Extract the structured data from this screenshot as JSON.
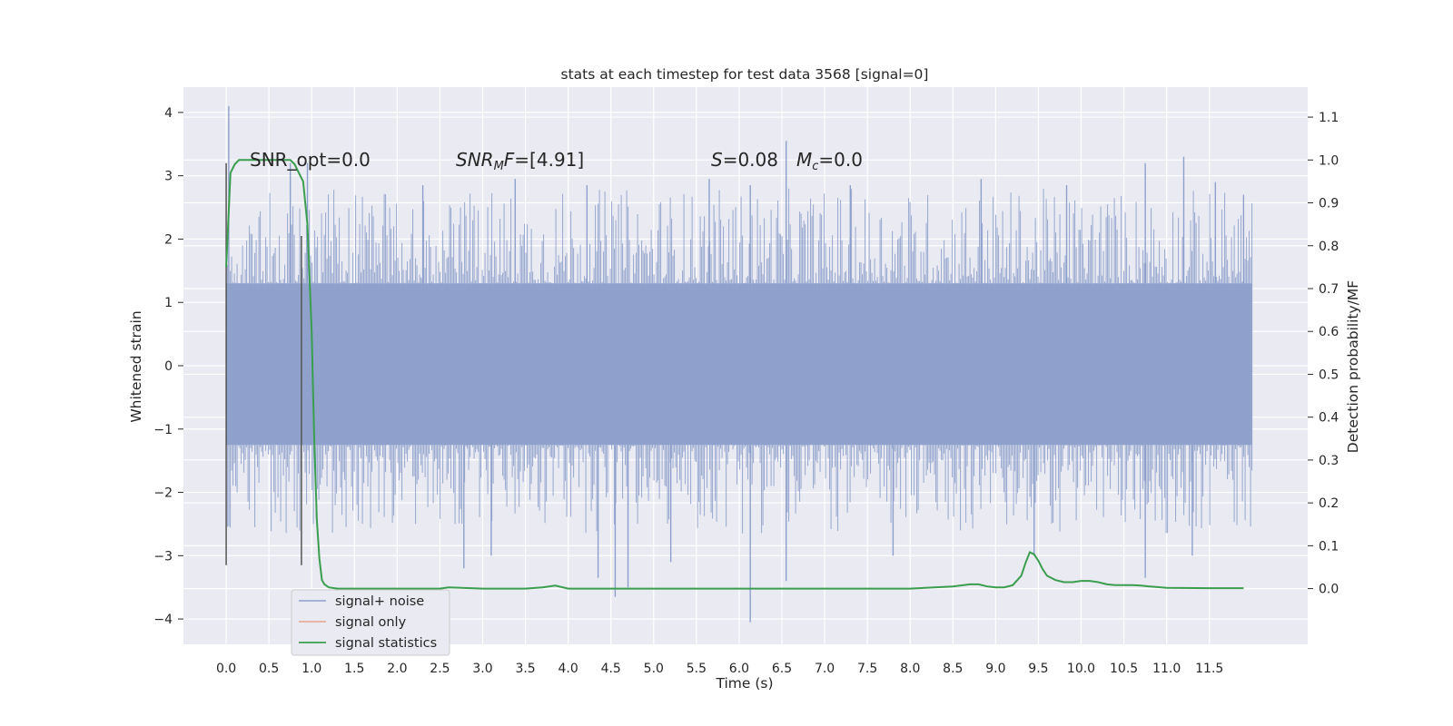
{
  "chart_data": {
    "type": "line",
    "title": "stats at each timestep for test data 3568 [signal=0]",
    "xlabel": "Time (s)",
    "ylabel": "Whitened strain",
    "ylabel_right": "Detection probability/MF",
    "xlim": [
      -0.5,
      12.65
    ],
    "ylim": [
      -4.4,
      4.4
    ],
    "ylim_right": [
      -0.13,
      1.17
    ],
    "xticks": [
      0.0,
      0.5,
      1.0,
      1.5,
      2.0,
      2.5,
      3.0,
      3.5,
      4.0,
      4.5,
      5.0,
      5.5,
      6.0,
      6.5,
      7.0,
      7.5,
      8.0,
      8.5,
      9.0,
      9.5,
      10.0,
      10.5,
      11.0,
      11.5
    ],
    "xtick_labels": [
      "0.0",
      "0.5",
      "1.0",
      "1.5",
      "2.0",
      "2.5",
      "3.0",
      "3.5",
      "4.0",
      "4.5",
      "5.0",
      "5.5",
      "6.0",
      "6.5",
      "7.0",
      "7.5",
      "8.0",
      "8.5",
      "9.0",
      "9.5",
      "10.0",
      "10.5",
      "11.0",
      "11.5"
    ],
    "yticks": [
      4,
      3,
      2,
      1,
      0,
      -1,
      -2,
      -3,
      -4
    ],
    "ytick_labels": [
      "4",
      "3",
      "2",
      "1",
      "0",
      "−1",
      "−2",
      "−3",
      "−4"
    ],
    "yticks_right": [
      1.1,
      1.0,
      0.9,
      0.8,
      0.7,
      0.6,
      0.5,
      0.4,
      0.3,
      0.2,
      0.1,
      0.0
    ],
    "ytick_labels_right": [
      "1.1",
      "1.0",
      "0.9",
      "0.8",
      "0.7",
      "0.6",
      "0.5",
      "0.4",
      "0.3",
      "0.2",
      "0.1",
      "0.0"
    ],
    "grid": true,
    "legend_position": "lower-left",
    "noise_band": [
      -1.25,
      1.3
    ],
    "noise_duration": [
      0.0,
      12.0
    ],
    "noise_spikes": [
      [
        0.03,
        4.1
      ],
      [
        0.75,
        3.2
      ],
      [
        0.95,
        3.2
      ],
      [
        2.3,
        2.85
      ],
      [
        3.38,
        2.95
      ],
      [
        4.22,
        2.85
      ],
      [
        5.65,
        2.95
      ],
      [
        6.13,
        2.85
      ],
      [
        6.55,
        3.55
      ],
      [
        7.3,
        2.85
      ],
      [
        8.83,
        2.95
      ],
      [
        9.83,
        2.85
      ],
      [
        10.75,
        3.2
      ],
      [
        11.2,
        3.3
      ],
      [
        11.57,
        2.9
      ],
      [
        11.9,
        2.7
      ],
      [
        4.35,
        -3.35
      ],
      [
        4.55,
        -3.65
      ],
      [
        4.7,
        -3.5
      ],
      [
        6.13,
        -4.05
      ],
      [
        6.55,
        -3.4
      ],
      [
        10.75,
        -3.35
      ],
      [
        2.78,
        -3.2
      ],
      [
        3.1,
        -3.0
      ],
      [
        5.2,
        -3.1
      ],
      [
        7.8,
        -3.0
      ],
      [
        9.45,
        -3.0
      ],
      [
        11.3,
        -3.0
      ]
    ],
    "vlines": [
      {
        "x": 0.0,
        "y": [
          -3.15,
          3.2
        ]
      },
      {
        "x": 0.88,
        "y": [
          -3.15,
          2.05
        ]
      }
    ],
    "series": [
      {
        "name": "signal+ noise",
        "color": "#8da0cb",
        "axis": "left",
        "values_note": ""
      },
      {
        "name": "signal only",
        "color": "#e8a58a",
        "axis": "left",
        "x": [],
        "y": []
      },
      {
        "name": "signal statistics",
        "color": "#3a9e4f",
        "axis": "right",
        "x": [
          0.0,
          0.05,
          0.1,
          0.15,
          0.2,
          0.3,
          0.4,
          0.5,
          0.6,
          0.7,
          0.75,
          0.8,
          0.85,
          0.9,
          0.95,
          1.0,
          1.03,
          1.06,
          1.09,
          1.12,
          1.15,
          1.2,
          1.3,
          1.5,
          2.0,
          2.5,
          2.6,
          3.0,
          3.5,
          3.7,
          3.85,
          4.0,
          4.5,
          5.0,
          5.5,
          6.0,
          6.5,
          7.0,
          7.5,
          8.0,
          8.5,
          8.7,
          8.8,
          8.9,
          9.0,
          9.1,
          9.2,
          9.3,
          9.35,
          9.4,
          9.45,
          9.5,
          9.55,
          9.6,
          9.7,
          9.8,
          9.9,
          10.0,
          10.1,
          10.2,
          10.3,
          10.4,
          10.5,
          10.6,
          10.7,
          10.8,
          11.0,
          11.5,
          11.9
        ],
        "y": [
          0.75,
          0.97,
          0.99,
          1.0,
          1.0,
          1.0,
          1.0,
          1.0,
          1.0,
          1.0,
          1.0,
          0.99,
          0.97,
          0.95,
          0.85,
          0.6,
          0.35,
          0.16,
          0.07,
          0.02,
          0.01,
          0.003,
          0.0,
          0.0,
          0.0,
          0.0,
          0.003,
          0.0,
          0.0,
          0.003,
          0.007,
          0.0,
          0.0,
          0.0,
          0.0,
          0.0,
          0.0,
          0.0,
          0.0,
          0.0,
          0.005,
          0.01,
          0.01,
          0.005,
          0.003,
          0.003,
          0.008,
          0.03,
          0.06,
          0.085,
          0.08,
          0.065,
          0.045,
          0.03,
          0.02,
          0.015,
          0.015,
          0.018,
          0.018,
          0.015,
          0.01,
          0.008,
          0.008,
          0.008,
          0.007,
          0.005,
          0.002,
          0.001,
          0.001
        ]
      }
    ],
    "annotations": [
      {
        "text": "SNR_opt=0.0"
      },
      {
        "main": "SNR",
        "sub": "M",
        "rest": "F=[4.91]"
      },
      {
        "main": "S",
        "rest": "=0.08"
      },
      {
        "main": "M",
        "sub": "c",
        "rest": "=0.0"
      }
    ]
  }
}
